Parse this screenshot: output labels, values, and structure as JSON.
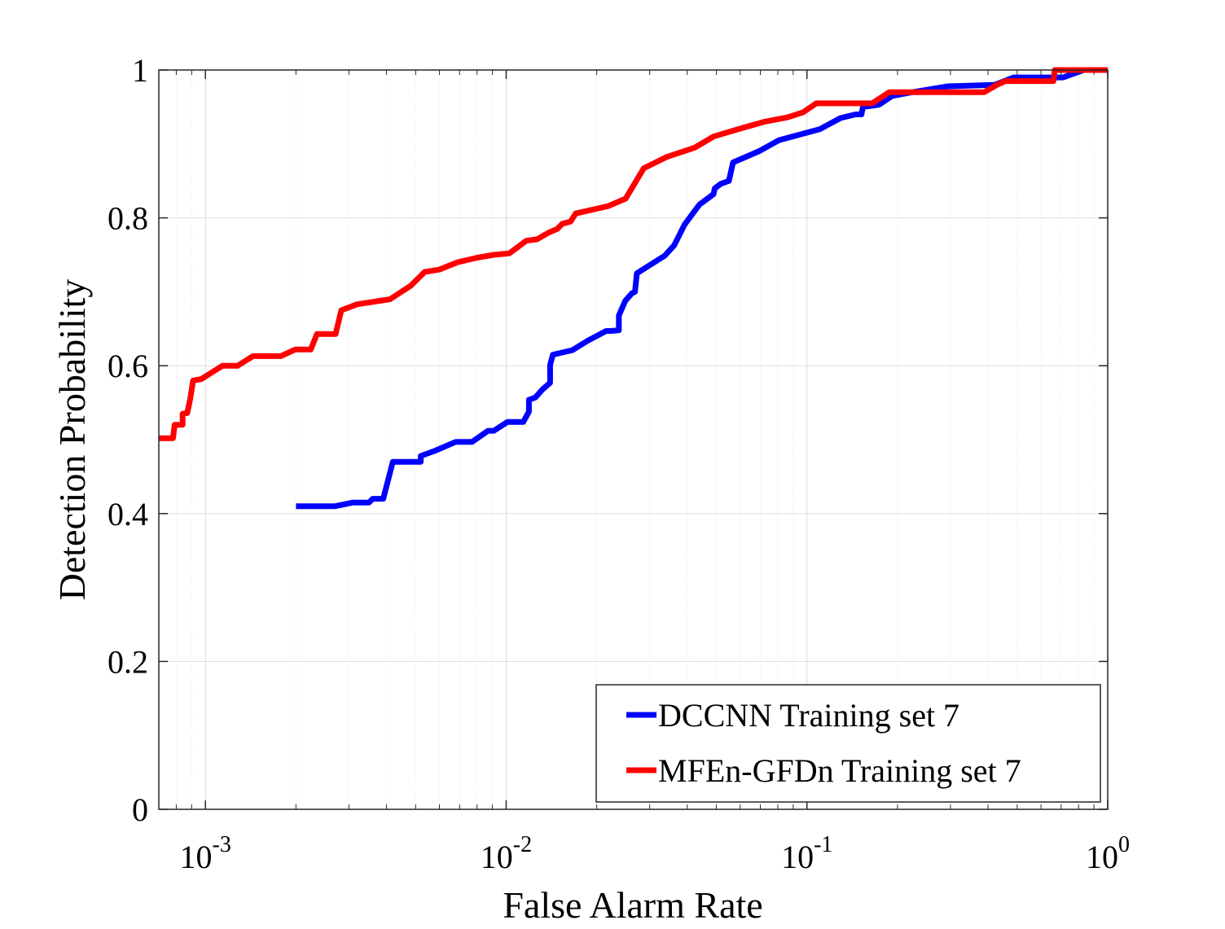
{
  "chart_data": {
    "type": "line",
    "xscale": "log",
    "xlim": [
      0.0007,
      1
    ],
    "ylim": [
      0,
      1
    ],
    "xlabel": "False Alarm Rate",
    "ylabel": "Detection Probability",
    "grid": true,
    "legend_position": "bottom-right",
    "x_ticks": [
      {
        "value": 0.001,
        "base": "10",
        "exp": "-3"
      },
      {
        "value": 0.01,
        "base": "10",
        "exp": "-2"
      },
      {
        "value": 0.1,
        "base": "10",
        "exp": "-1"
      },
      {
        "value": 1,
        "base": "10",
        "exp": "0"
      }
    ],
    "y_ticks": [
      {
        "value": 0,
        "label": "0"
      },
      {
        "value": 0.2,
        "label": "0.2"
      },
      {
        "value": 0.4,
        "label": "0.4"
      },
      {
        "value": 0.6,
        "label": "0.6"
      },
      {
        "value": 0.8,
        "label": "0.8"
      },
      {
        "value": 1,
        "label": "1"
      }
    ],
    "series": [
      {
        "name": "DCCNN Training set 7",
        "color": "#0000ff",
        "points": [
          [
            0.002,
            0.41
          ],
          [
            0.0027,
            0.41
          ],
          [
            0.0031,
            0.415
          ],
          [
            0.0035,
            0.415
          ],
          [
            0.0036,
            0.42
          ],
          [
            0.0039,
            0.42
          ],
          [
            0.0042,
            0.47
          ],
          [
            0.0052,
            0.47
          ],
          [
            0.0052,
            0.478
          ],
          [
            0.0058,
            0.485
          ],
          [
            0.0068,
            0.497
          ],
          [
            0.0077,
            0.497
          ],
          [
            0.0087,
            0.512
          ],
          [
            0.0091,
            0.512
          ],
          [
            0.0101,
            0.524
          ],
          [
            0.0114,
            0.524
          ],
          [
            0.0119,
            0.538
          ],
          [
            0.0119,
            0.554
          ],
          [
            0.0125,
            0.557
          ],
          [
            0.0132,
            0.568
          ],
          [
            0.014,
            0.577
          ],
          [
            0.014,
            0.601
          ],
          [
            0.0143,
            0.615
          ],
          [
            0.0166,
            0.621
          ],
          [
            0.0187,
            0.634
          ],
          [
            0.0215,
            0.647
          ],
          [
            0.0223,
            0.647
          ],
          [
            0.0237,
            0.648
          ],
          [
            0.0237,
            0.668
          ],
          [
            0.0249,
            0.688
          ],
          [
            0.0262,
            0.698
          ],
          [
            0.0268,
            0.7
          ],
          [
            0.0272,
            0.725
          ],
          [
            0.0337,
            0.749
          ],
          [
            0.0362,
            0.763
          ],
          [
            0.0392,
            0.791
          ],
          [
            0.0439,
            0.818
          ],
          [
            0.0489,
            0.832
          ],
          [
            0.0494,
            0.84
          ],
          [
            0.0517,
            0.846
          ],
          [
            0.055,
            0.85
          ],
          [
            0.0568,
            0.875
          ],
          [
            0.0691,
            0.89
          ],
          [
            0.0806,
            0.905
          ],
          [
            0.1105,
            0.92
          ],
          [
            0.1293,
            0.935
          ],
          [
            0.1452,
            0.94
          ],
          [
            0.1517,
            0.94
          ],
          [
            0.1535,
            0.95
          ],
          [
            0.1735,
            0.953
          ],
          [
            0.1921,
            0.965
          ],
          [
            0.2245,
            0.97
          ],
          [
            0.2946,
            0.978
          ],
          [
            0.4205,
            0.98
          ],
          [
            0.4864,
            0.99
          ],
          [
            0.6093,
            0.99
          ],
          [
            0.7108,
            0.99
          ],
          [
            0.833,
            1.0
          ],
          [
            1.0,
            1.0
          ]
        ]
      },
      {
        "name": "MFEn-GFDn Training set 7",
        "color": "#ff0000",
        "points": [
          [
            0.0007,
            0.502
          ],
          [
            0.00078,
            0.502
          ],
          [
            0.00079,
            0.52
          ],
          [
            0.00084,
            0.52
          ],
          [
            0.00084,
            0.535
          ],
          [
            0.00087,
            0.536
          ],
          [
            0.00089,
            0.555
          ],
          [
            0.00091,
            0.58
          ],
          [
            0.00097,
            0.582
          ],
          [
            0.00114,
            0.6
          ],
          [
            0.00128,
            0.6
          ],
          [
            0.00144,
            0.613
          ],
          [
            0.00178,
            0.613
          ],
          [
            0.00199,
            0.622
          ],
          [
            0.00224,
            0.622
          ],
          [
            0.00235,
            0.643
          ],
          [
            0.00271,
            0.643
          ],
          [
            0.00283,
            0.675
          ],
          [
            0.00319,
            0.683
          ],
          [
            0.00411,
            0.69
          ],
          [
            0.00481,
            0.708
          ],
          [
            0.00536,
            0.727
          ],
          [
            0.00598,
            0.73
          ],
          [
            0.00689,
            0.74
          ],
          [
            0.00798,
            0.746
          ],
          [
            0.00909,
            0.75
          ],
          [
            0.01024,
            0.752
          ],
          [
            0.01166,
            0.769
          ],
          [
            0.01267,
            0.771
          ],
          [
            0.01382,
            0.78
          ],
          [
            0.01479,
            0.785
          ],
          [
            0.01536,
            0.792
          ],
          [
            0.01637,
            0.795
          ],
          [
            0.01703,
            0.806
          ],
          [
            0.02183,
            0.816
          ],
          [
            0.02495,
            0.826
          ],
          [
            0.02866,
            0.867
          ],
          [
            0.03401,
            0.882
          ],
          [
            0.04237,
            0.895
          ],
          [
            0.04893,
            0.91
          ],
          [
            0.05911,
            0.92
          ],
          [
            0.07209,
            0.93
          ],
          [
            0.08637,
            0.936
          ],
          [
            0.09725,
            0.943
          ],
          [
            0.10744,
            0.955
          ],
          [
            0.12053,
            0.955
          ],
          [
            0.16473,
            0.955
          ],
          [
            0.18781,
            0.97
          ],
          [
            0.21096,
            0.97
          ],
          [
            0.38848,
            0.97
          ],
          [
            0.42829,
            0.98
          ],
          [
            0.45764,
            0.985
          ],
          [
            0.6602,
            0.985
          ],
          [
            0.66624,
            1.0
          ],
          [
            1.0,
            1.0
          ]
        ]
      }
    ]
  }
}
